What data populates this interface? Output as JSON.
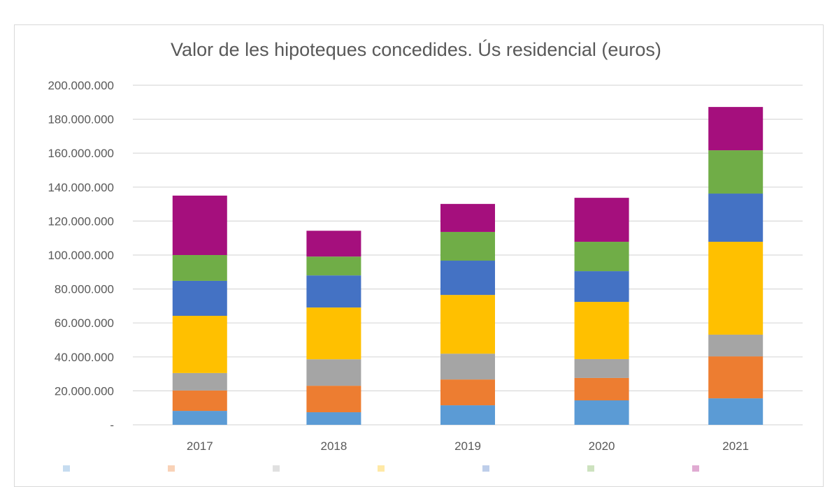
{
  "chart_data": {
    "type": "bar",
    "stacked": true,
    "title": "Valor de les hipoteques concedides. Ús residencial (euros)",
    "xlabel": "",
    "ylabel": "",
    "categories": [
      "2017",
      "2018",
      "2019",
      "2020",
      "2021"
    ],
    "ylim": [
      0,
      200000000
    ],
    "yticks": [
      0,
      20000000,
      40000000,
      60000000,
      80000000,
      100000000,
      120000000,
      140000000,
      160000000,
      180000000,
      200000000
    ],
    "ytick_labels": [
      "-",
      "20.000.000",
      "40.000.000",
      "60.000.000",
      "80.000.000",
      "100.000.000",
      "120.000.000",
      "140.000.000",
      "160.000.000",
      "180.000.000",
      "200.000.000"
    ],
    "grid": true,
    "legend": "bottom",
    "series": [
      {
        "color": "#5b9bd5",
        "values": [
          8200000,
          7400000,
          11500000,
          14400000,
          15600000
        ]
      },
      {
        "color": "#ed7d31",
        "values": [
          12000000,
          15600000,
          15200000,
          13200000,
          24700000
        ]
      },
      {
        "color": "#a5a5a5",
        "values": [
          10300000,
          15600000,
          15200000,
          11100000,
          12800000
        ]
      },
      {
        "color": "#ffc000",
        "values": [
          33700000,
          30500000,
          34600000,
          33700000,
          54700000
        ]
      },
      {
        "color": "#4472c4",
        "values": [
          20600000,
          18900000,
          20200000,
          18100000,
          28400000
        ]
      },
      {
        "color": "#70ad47",
        "values": [
          15200000,
          11100000,
          16900000,
          17300000,
          25500000
        ]
      },
      {
        "color": "#a50f7d",
        "values": [
          35000000,
          15200000,
          16500000,
          25900000,
          25500000
        ]
      }
    ]
  }
}
